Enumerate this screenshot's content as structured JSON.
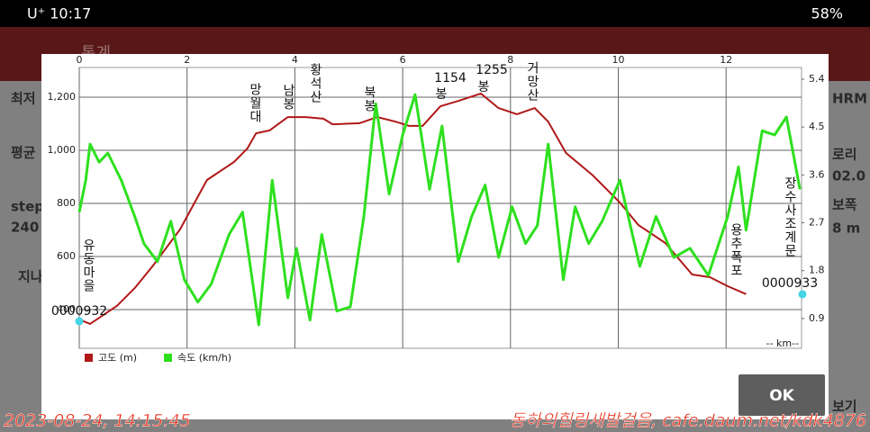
{
  "status_bar": {
    "time": "U⁺ 10:17",
    "battery": "58%"
  },
  "background": {
    "title": "통계",
    "left_labels": [
      "최저",
      "평균",
      "step",
      "240",
      "지나"
    ],
    "right_labels": [
      "HRM",
      "로리",
      "02.0",
      "보폭",
      "8 m",
      "보기"
    ]
  },
  "chart_data": {
    "type": "line",
    "xlabel": "-- km--",
    "xlim": [
      0,
      13.4
    ],
    "xticks": [
      0,
      2,
      4,
      6,
      8,
      10,
      12
    ],
    "ylim": [
      254,
      1312
    ],
    "yticks": [
      {
        "value": 400,
        "label": "400"
      },
      {
        "value": 600,
        "label": "600"
      },
      {
        "value": 800,
        "label": "800"
      },
      {
        "value": 1000,
        "label": "1,000"
      },
      {
        "value": 1200,
        "label": "1,200"
      }
    ],
    "y2lim": [
      0.34,
      5.62
    ],
    "y2ticks": [
      0.9,
      1.8,
      2.7,
      3.6,
      4.5,
      5.4
    ],
    "grid": true,
    "series": [
      {
        "name": "고도 (m)",
        "color": "#b01818",
        "x": [
          0,
          0.2,
          0.7,
          1.03,
          1.37,
          1.87,
          2.37,
          2.87,
          3.12,
          3.28,
          3.53,
          3.87,
          4.2,
          4.53,
          4.7,
          5.2,
          5.53,
          5.87,
          6.12,
          6.37,
          6.7,
          7.03,
          7.45,
          7.78,
          8.12,
          8.45,
          8.7,
          9.03,
          9.53,
          10.03,
          10.37,
          10.87,
          11.37,
          11.7,
          12.03,
          12.37
        ],
        "values": [
          363,
          346,
          414,
          481,
          566,
          702,
          888,
          956,
          1007,
          1064,
          1075,
          1125,
          1125,
          1119,
          1098,
          1102,
          1125,
          1108,
          1092,
          1092,
          1166,
          1186,
          1214,
          1159,
          1136,
          1159,
          1108,
          990,
          905,
          803,
          719,
          651,
          532,
          522,
          488,
          458
        ]
      },
      {
        "name": "속도 (km/h)",
        "color": "#2ee01e",
        "axis": "y2",
        "x": [
          0,
          0.12,
          0.2,
          0.37,
          0.53,
          0.78,
          1.03,
          1.2,
          1.45,
          1.7,
          1.95,
          2.2,
          2.45,
          2.78,
          3.03,
          3.33,
          3.58,
          3.87,
          4.03,
          4.28,
          4.5,
          4.78,
          5.03,
          5.28,
          5.5,
          5.75,
          6.0,
          6.23,
          6.5,
          6.73,
          7.03,
          7.28,
          7.53,
          7.78,
          8.03,
          8.28,
          8.5,
          8.7,
          8.98,
          9.2,
          9.45,
          9.7,
          10.03,
          10.4,
          10.7,
          11.03,
          11.33,
          11.67,
          12.03,
          12.23,
          12.37,
          12.67,
          12.9,
          13.12,
          13.37
        ],
        "values": [
          2.9,
          3.5,
          4.18,
          3.84,
          4.01,
          3.5,
          2.82,
          2.31,
          1.97,
          2.73,
          1.63,
          1.21,
          1.55,
          2.48,
          2.9,
          0.78,
          3.5,
          1.29,
          2.22,
          0.87,
          2.48,
          1.04,
          1.12,
          2.82,
          4.94,
          3.24,
          4.35,
          5.11,
          3.33,
          4.52,
          1.97,
          2.82,
          3.41,
          2.05,
          3.0,
          2.31,
          2.65,
          4.18,
          1.63,
          3.0,
          2.31,
          2.73,
          3.5,
          1.88,
          2.82,
          2.05,
          2.22,
          1.71,
          2.82,
          3.75,
          2.56,
          4.43,
          4.35,
          4.69,
          3.33
        ]
      }
    ],
    "annotations": [
      "유동마을",
      "망월대",
      "남봉",
      "황석산",
      "북봉",
      "1154",
      "봉",
      "1255",
      "봉",
      "거망산",
      "용추폭포",
      "장수사조계문",
      "0000932",
      "0000933"
    ]
  },
  "dialog": {
    "button": "OK"
  },
  "watermark": {
    "date": "2023-08-24, 14:15:45",
    "credit": "동하의힐링새발걸음, cafe.daum.net/kdk4876"
  }
}
